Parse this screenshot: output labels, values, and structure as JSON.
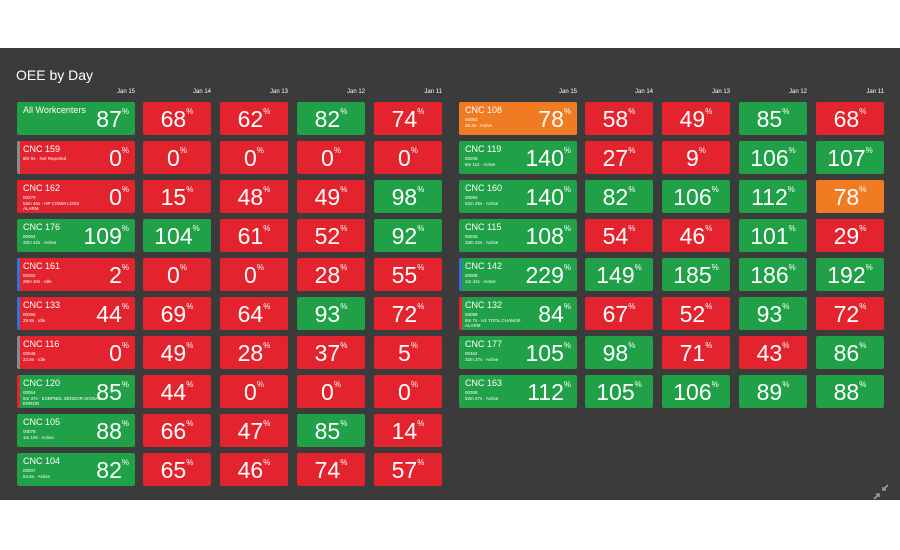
{
  "header": {
    "title": "OEE by Day"
  },
  "unit": "%",
  "palette": {
    "green": "#20a047",
    "red": "#e3242e",
    "orange": "#f17b22",
    "gray": "#8a8a8a",
    "blue": "#3b6fd1"
  },
  "groups": [
    {
      "days": [
        "Jan 15",
        "Jan 14",
        "Jan 13",
        "Jan 12",
        "Jan 11"
      ],
      "rows": [
        {
          "name": "All Workcenters",
          "lines": [],
          "value": 87,
          "color": "green",
          "days": [
            {
              "value": 68,
              "color": "red"
            },
            {
              "value": 62,
              "color": "red"
            },
            {
              "value": 82,
              "color": "green"
            },
            {
              "value": 74,
              "color": "red"
            }
          ]
        },
        {
          "name": "CNC 159",
          "lines": [
            "8hr 0s · Not Reported"
          ],
          "value": 0,
          "color": "red",
          "stripe": "gray",
          "days": [
            {
              "value": 0,
              "color": "red"
            },
            {
              "value": 0,
              "color": "red"
            },
            {
              "value": 0,
              "color": "red"
            },
            {
              "value": 0,
              "color": "red"
            }
          ]
        },
        {
          "name": "CNC 162",
          "lines": [
            "00270",
            "52m 40s · HP COMM LOSS",
            "ALARM"
          ],
          "value": 0,
          "color": "red",
          "days": [
            {
              "value": 15,
              "color": "red"
            },
            {
              "value": 48,
              "color": "red"
            },
            {
              "value": 49,
              "color": "red"
            },
            {
              "value": 98,
              "color": "green"
            }
          ]
        },
        {
          "name": "CNC 176",
          "lines": [
            "00064",
            "32m 42s · Active"
          ],
          "value": 109,
          "color": "green",
          "days": [
            {
              "value": 104,
              "color": "green"
            },
            {
              "value": 61,
              "color": "red"
            },
            {
              "value": 52,
              "color": "red"
            },
            {
              "value": 92,
              "color": "green"
            }
          ]
        },
        {
          "name": "CNC 161",
          "lines": [
            "00262",
            "29m 40s · Idle"
          ],
          "value": 2,
          "color": "red",
          "stripe": "blue",
          "days": [
            {
              "value": 0,
              "color": "red"
            },
            {
              "value": 0,
              "color": "red"
            },
            {
              "value": 28,
              "color": "red"
            },
            {
              "value": 55,
              "color": "red"
            }
          ]
        },
        {
          "name": "CNC 133",
          "lines": [
            "00266",
            "29.8s · Idle"
          ],
          "value": 44,
          "color": "red",
          "stripe": "blue",
          "days": [
            {
              "value": 69,
              "color": "red"
            },
            {
              "value": 64,
              "color": "red"
            },
            {
              "value": 93,
              "color": "green"
            },
            {
              "value": 72,
              "color": "red"
            }
          ]
        },
        {
          "name": "CNC 116",
          "lines": [
            "00048",
            "23.9s · Idle"
          ],
          "value": 0,
          "color": "red",
          "stripe": "gray",
          "days": [
            {
              "value": 49,
              "color": "red"
            },
            {
              "value": 28,
              "color": "red"
            },
            {
              "value": 37,
              "color": "red"
            },
            {
              "value": 5,
              "color": "red"
            }
          ]
        },
        {
          "name": "CNC 120",
          "lines": [
            "00064",
            "5m 37s · ESBPNDL SENSOR SIGNAL",
            "ERROR"
          ],
          "value": 85,
          "color": "green",
          "stripe": "red",
          "days": [
            {
              "value": 44,
              "color": "red"
            },
            {
              "value": 0,
              "color": "red"
            },
            {
              "value": 0,
              "color": "red"
            },
            {
              "value": 0,
              "color": "red"
            }
          ]
        },
        {
          "name": "CNC 105",
          "lines": [
            "00078",
            "1m 10s · Active"
          ],
          "value": 88,
          "color": "green",
          "days": [
            {
              "value": 66,
              "color": "red"
            },
            {
              "value": 47,
              "color": "red"
            },
            {
              "value": 85,
              "color": "green"
            },
            {
              "value": 14,
              "color": "red"
            }
          ]
        },
        {
          "name": "CNC 104",
          "lines": [
            "00007",
            "54.8s · Active"
          ],
          "value": 82,
          "color": "green",
          "days": [
            {
              "value": 65,
              "color": "red"
            },
            {
              "value": 46,
              "color": "red"
            },
            {
              "value": 74,
              "color": "red"
            },
            {
              "value": 57,
              "color": "red"
            }
          ]
        }
      ]
    },
    {
      "days": [
        "Jan 15",
        "Jan 14",
        "Jan 13",
        "Jan 12",
        "Jan 11"
      ],
      "rows": [
        {
          "name": "CNC 108",
          "lines": [
            "00053",
            "46.3s · Active"
          ],
          "value": 78,
          "color": "orange",
          "days": [
            {
              "value": 58,
              "color": "red"
            },
            {
              "value": 49,
              "color": "red"
            },
            {
              "value": 85,
              "color": "green"
            },
            {
              "value": 68,
              "color": "red"
            }
          ]
        },
        {
          "name": "CNC 119",
          "lines": [
            "00208",
            "6m 11s · Active"
          ],
          "value": 140,
          "color": "green",
          "days": [
            {
              "value": 27,
              "color": "red"
            },
            {
              "value": 9,
              "color": "red"
            },
            {
              "value": 106,
              "color": "green"
            },
            {
              "value": 107,
              "color": "green"
            }
          ]
        },
        {
          "name": "CNC 160",
          "lines": [
            "00063",
            "52m 45s · Active"
          ],
          "value": 140,
          "color": "green",
          "days": [
            {
              "value": 82,
              "color": "green"
            },
            {
              "value": 106,
              "color": "green"
            },
            {
              "value": 112,
              "color": "green"
            },
            {
              "value": 78,
              "color": "orange"
            }
          ]
        },
        {
          "name": "CNC 115",
          "lines": [
            "00026",
            "33m 42s · Active"
          ],
          "value": 108,
          "color": "green",
          "days": [
            {
              "value": 54,
              "color": "red"
            },
            {
              "value": 46,
              "color": "red"
            },
            {
              "value": 101,
              "color": "green"
            },
            {
              "value": 29,
              "color": "red"
            }
          ]
        },
        {
          "name": "CNC 142",
          "lines": [
            "00008",
            "1m 41s · Active"
          ],
          "value": 229,
          "color": "green",
          "stripe": "blue",
          "days": [
            {
              "value": 149,
              "color": "green"
            },
            {
              "value": 185,
              "color": "green"
            },
            {
              "value": 186,
              "color": "green"
            },
            {
              "value": 192,
              "color": "green"
            }
          ]
        },
        {
          "name": "CNC 132",
          "lines": [
            "00058",
            "8m 7s · H1 TOOL CHANGE",
            "ALARM"
          ],
          "value": 84,
          "color": "green",
          "stripe": "red",
          "days": [
            {
              "value": 67,
              "color": "red"
            },
            {
              "value": 52,
              "color": "red"
            },
            {
              "value": 93,
              "color": "green"
            },
            {
              "value": 72,
              "color": "red"
            }
          ]
        },
        {
          "name": "CNC 177",
          "lines": [
            "00464",
            "32m 37s · Active"
          ],
          "value": 105,
          "color": "green",
          "days": [
            {
              "value": 98,
              "color": "green"
            },
            {
              "value": 71,
              "color": "red"
            },
            {
              "value": 43,
              "color": "red"
            },
            {
              "value": 86,
              "color": "green"
            }
          ]
        },
        {
          "name": "CNC 163",
          "lines": [
            "00308",
            "53m 27s · Active"
          ],
          "value": 112,
          "color": "green",
          "days": [
            {
              "value": 105,
              "color": "green"
            },
            {
              "value": 106,
              "color": "green"
            },
            {
              "value": 89,
              "color": "green"
            },
            {
              "value": 88,
              "color": "green"
            }
          ]
        }
      ]
    }
  ]
}
